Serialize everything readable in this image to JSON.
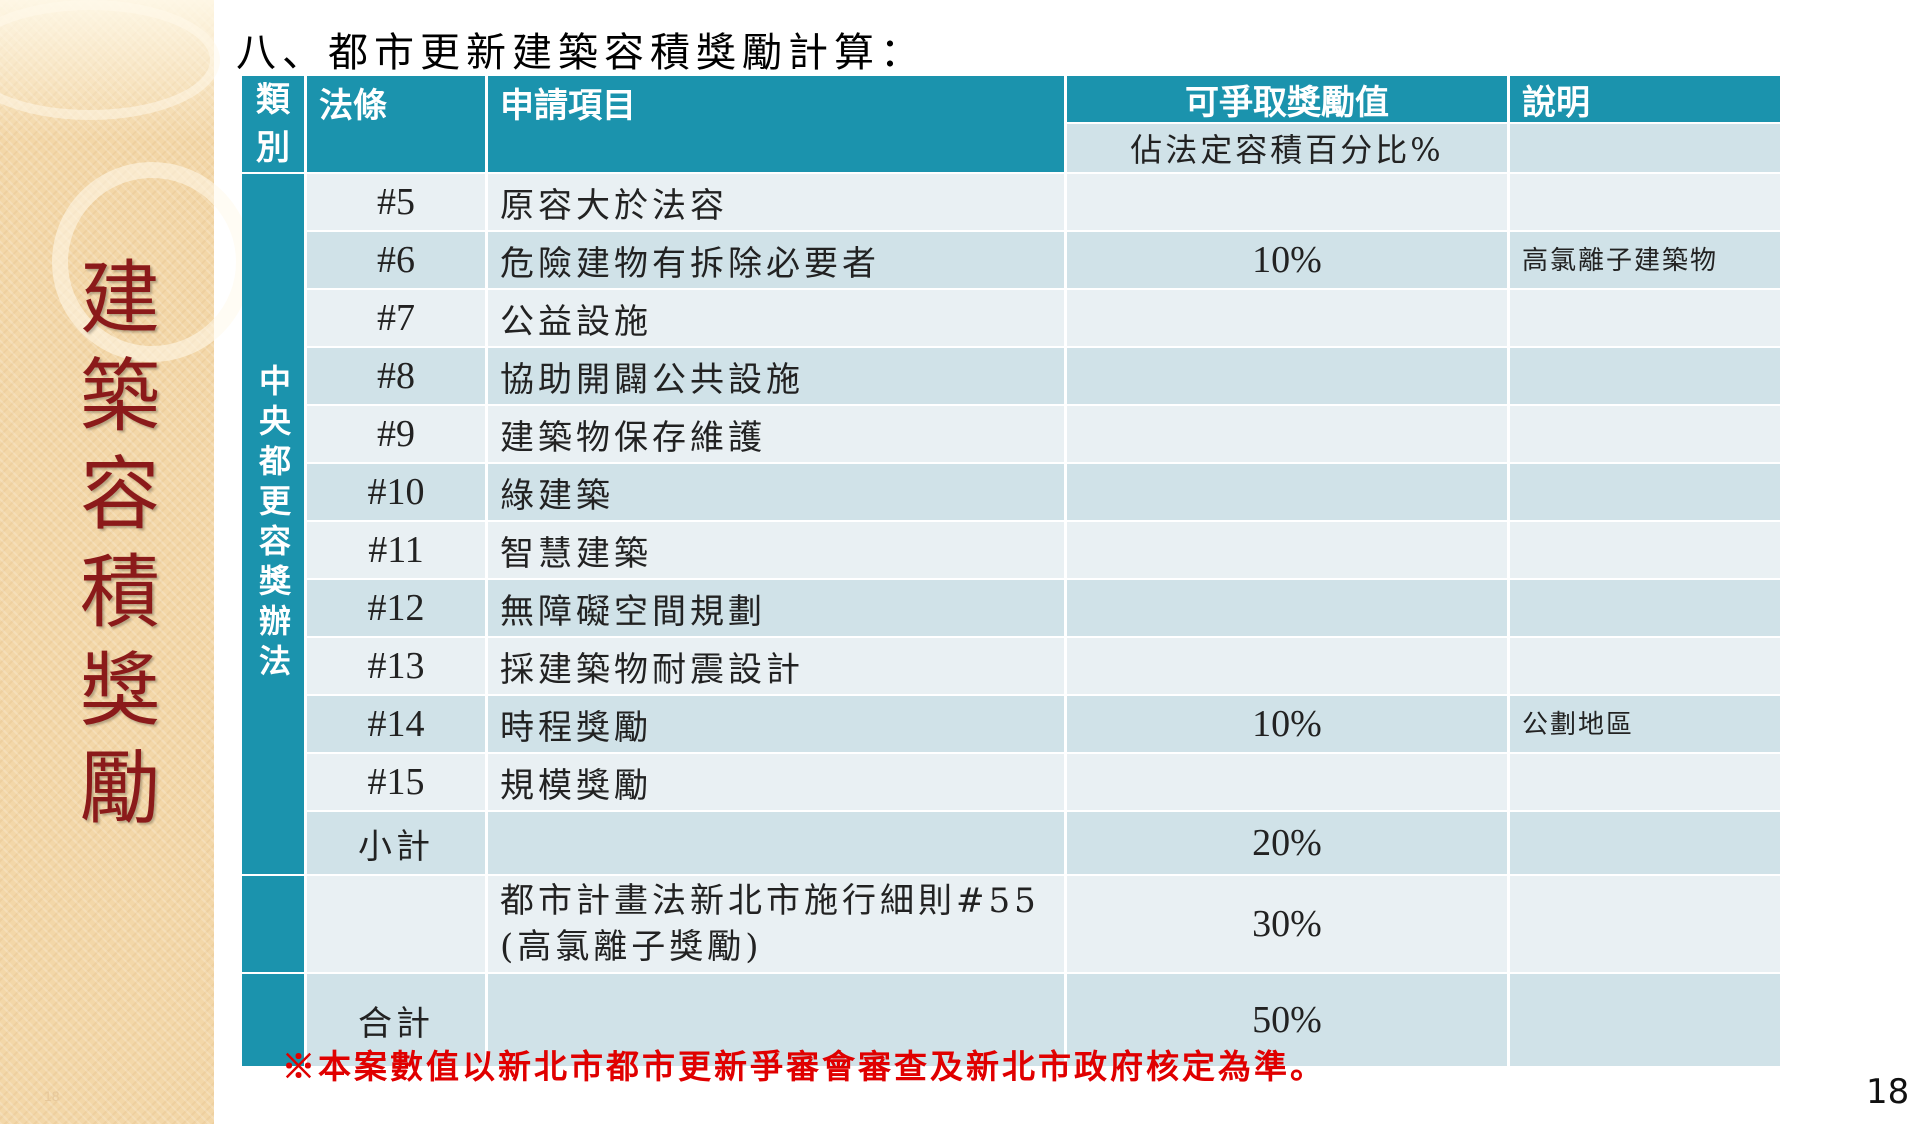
{
  "slide": {
    "title": "八、都市更新建築容積獎勵計算：",
    "side_title": [
      "建",
      "築",
      "容",
      "積",
      "獎",
      "勵"
    ],
    "side_page_number": "18",
    "page_number": "18",
    "footnote": "※本案數值以新北市都市更新爭審會審查及新北市政府核定為準。"
  },
  "table": {
    "headers": {
      "category": [
        "類",
        "別"
      ],
      "law": "法條",
      "item": "申請項目",
      "value": "可爭取獎勵值",
      "value_sub": "佔法定容積百分比%",
      "note": "說明"
    },
    "group_label": "中央都更容獎辦法",
    "rows": [
      {
        "law": "#5",
        "item": "原容大於法容",
        "value": "",
        "note": ""
      },
      {
        "law": "#6",
        "item": "危險建物有拆除必要者",
        "value": "10%",
        "note": "高氯離子建築物"
      },
      {
        "law": "#7",
        "item": "公益設施",
        "value": "",
        "note": ""
      },
      {
        "law": "#8",
        "item": "協助開闢公共設施",
        "value": "",
        "note": ""
      },
      {
        "law": "#9",
        "item": "建築物保存維護",
        "value": "",
        "note": ""
      },
      {
        "law": "#10",
        "item": "綠建築",
        "value": "",
        "note": ""
      },
      {
        "law": "#11",
        "item": "智慧建築",
        "value": "",
        "note": ""
      },
      {
        "law": "#12",
        "item": "無障礙空間規劃",
        "value": "",
        "note": ""
      },
      {
        "law": "#13",
        "item": "採建築物耐震設計",
        "value": "",
        "note": ""
      },
      {
        "law": "#14",
        "item": "時程獎勵",
        "value": "10%",
        "note": "公劃地區"
      },
      {
        "law": "#15",
        "item": "規模獎勵",
        "value": "",
        "note": ""
      }
    ],
    "subtotal": {
      "label": "小計",
      "value": "20%"
    },
    "local": {
      "item_line1": "都市計畫法新北市施行細則#55",
      "item_line2": "(高氯離子獎勵)",
      "value": "30%"
    },
    "total": {
      "label": "合計",
      "value": "50%"
    }
  }
}
